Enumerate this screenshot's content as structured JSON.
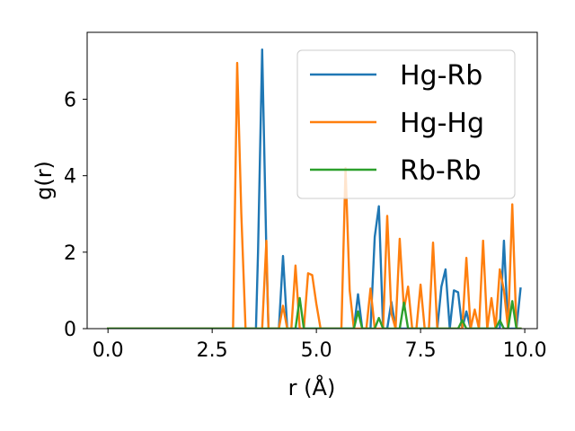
{
  "chart_data": {
    "type": "line",
    "xlabel": "r (Å)",
    "ylabel": "g(r)",
    "xlim": [
      -0.5,
      10.3
    ],
    "ylim": [
      0,
      7.75
    ],
    "xticks": [
      0.0,
      2.5,
      5.0,
      7.5,
      10.0
    ],
    "xtick_labels": [
      "0.0",
      "2.5",
      "5.0",
      "7.5",
      "10.0"
    ],
    "yticks": [
      0,
      2,
      4,
      6
    ],
    "ytick_labels": [
      "0",
      "2",
      "4",
      "6"
    ],
    "grid": false,
    "legend_position": "top-right",
    "series": [
      {
        "name": "Hg-Rb",
        "color": "#1f77b4",
        "x": [
          0.0,
          3.55,
          3.6,
          3.7,
          3.8,
          3.85,
          4.1,
          4.2,
          4.3,
          5.8,
          5.9,
          6.0,
          6.1,
          6.2,
          6.3,
          6.4,
          6.5,
          6.6,
          6.7,
          6.8,
          6.9,
          7.9,
          8.0,
          8.1,
          8.2,
          8.3,
          8.4,
          8.5,
          8.6,
          8.7,
          8.8,
          9.2,
          9.3,
          9.4,
          9.5,
          9.6,
          9.7,
          9.8,
          9.9
        ],
        "y": [
          0.0,
          0.0,
          2.0,
          7.3,
          2.0,
          0.0,
          0.0,
          1.9,
          0.0,
          0.0,
          0.0,
          0.9,
          0.0,
          0.0,
          0.0,
          2.4,
          3.2,
          0.0,
          0.0,
          0.7,
          0.0,
          0.0,
          1.1,
          1.55,
          0.0,
          1.0,
          0.95,
          0.0,
          0.45,
          0.0,
          0.0,
          0.0,
          0.0,
          0.0,
          2.3,
          0.0,
          0.0,
          0.0,
          1.05
        ]
      },
      {
        "name": "Hg-Hg",
        "color": "#ff7f0e",
        "x": [
          0.0,
          3.0,
          3.1,
          3.2,
          3.3,
          3.7,
          3.8,
          3.85,
          4.1,
          4.2,
          4.3,
          4.4,
          4.5,
          4.6,
          4.7,
          4.8,
          4.9,
          5.0,
          5.1,
          5.6,
          5.7,
          5.8,
          5.9,
          6.0,
          6.1,
          6.2,
          6.3,
          6.4,
          6.5,
          6.6,
          6.7,
          6.8,
          6.9,
          7.0,
          7.1,
          7.2,
          7.3,
          7.4,
          7.5,
          7.6,
          7.7,
          7.8,
          7.9,
          8.0,
          8.1,
          8.2,
          8.3,
          8.4,
          8.5,
          8.6,
          8.7,
          8.8,
          8.9,
          9.0,
          9.1,
          9.2,
          9.3,
          9.4,
          9.5,
          9.6,
          9.7,
          9.8,
          9.9
        ],
        "y": [
          0.0,
          0.0,
          6.95,
          3.0,
          0.0,
          0.0,
          2.3,
          0.0,
          0.0,
          0.6,
          0.0,
          0.0,
          1.65,
          0.0,
          0.0,
          1.45,
          1.4,
          0.65,
          0.0,
          0.0,
          4.2,
          1.0,
          0.0,
          0.0,
          0.0,
          0.0,
          1.05,
          0.0,
          0.0,
          0.0,
          2.95,
          0.4,
          0.0,
          2.35,
          0.5,
          1.1,
          0.0,
          0.0,
          1.15,
          0.0,
          0.0,
          2.25,
          0.0,
          0.0,
          0.0,
          0.0,
          0.0,
          0.0,
          0.0,
          1.85,
          0.0,
          0.5,
          0.0,
          2.3,
          0.0,
          0.8,
          0.0,
          1.55,
          1.0,
          0.0,
          3.25,
          0.0,
          0.0
        ]
      },
      {
        "name": "Rb-Rb",
        "color": "#2ca02c",
        "x": [
          0.0,
          4.5,
          4.6,
          4.7,
          5.9,
          6.0,
          6.1,
          6.4,
          6.5,
          6.6,
          7.0,
          7.1,
          7.2,
          8.4,
          8.5,
          8.6,
          9.3,
          9.4,
          9.5,
          9.6,
          9.7,
          9.8,
          9.9
        ],
        "y": [
          0.0,
          0.0,
          0.8,
          0.0,
          0.0,
          0.45,
          0.0,
          0.0,
          0.28,
          0.0,
          0.0,
          0.68,
          0.0,
          0.0,
          0.22,
          0.0,
          0.0,
          0.22,
          0.0,
          0.0,
          0.72,
          0.0,
          0.0
        ]
      }
    ]
  }
}
